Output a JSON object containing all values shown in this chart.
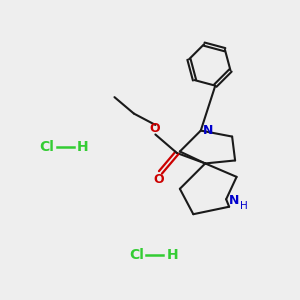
{
  "background_color": "#eeeeee",
  "hcl_color": "#33cc33",
  "bond_color": "#1a1a1a",
  "nitrogen_color": "#0000cc",
  "oxygen_color": "#cc0000",
  "figsize": [
    3.0,
    3.0
  ],
  "dpi": 100,
  "xlim": [
    0,
    10
  ],
  "ylim": [
    0,
    10
  ]
}
